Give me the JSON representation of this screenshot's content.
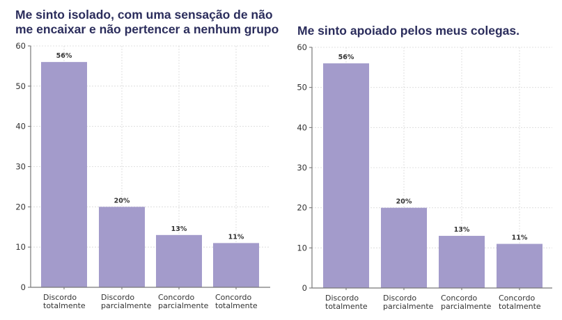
{
  "chart_data": [
    {
      "type": "bar",
      "title": "Me sinto isolado, com uma sensação de não me encaixar e não pertencer a nenhum grupo",
      "categories": [
        "Discordo totalmente",
        "Discordo parcialmente",
        "Concordo parcialmente",
        "Concordo totalmente"
      ],
      "values": [
        56,
        20,
        13,
        11
      ],
      "data_labels": [
        "56%",
        "20%",
        "13%",
        "11%"
      ],
      "ylim": [
        0,
        60
      ],
      "yticks": [
        "0",
        "10",
        "20",
        "30",
        "40",
        "50",
        "60"
      ],
      "grid": true,
      "bar_color": "#a39bcb"
    },
    {
      "type": "bar",
      "title": "Me sinto apoiado pelos meus colegas.",
      "categories": [
        "Discordo totalmente",
        "Discordo parcialmente",
        "Concordo parcialmente",
        "Concordo totalmente"
      ],
      "values": [
        56,
        20,
        13,
        11
      ],
      "data_labels": [
        "56%",
        "20%",
        "13%",
        "11%"
      ],
      "ylim": [
        0,
        60
      ],
      "yticks": [
        "0",
        "10",
        "20",
        "30",
        "40",
        "50",
        "60"
      ],
      "grid": true,
      "bar_color": "#a39bcb"
    }
  ]
}
